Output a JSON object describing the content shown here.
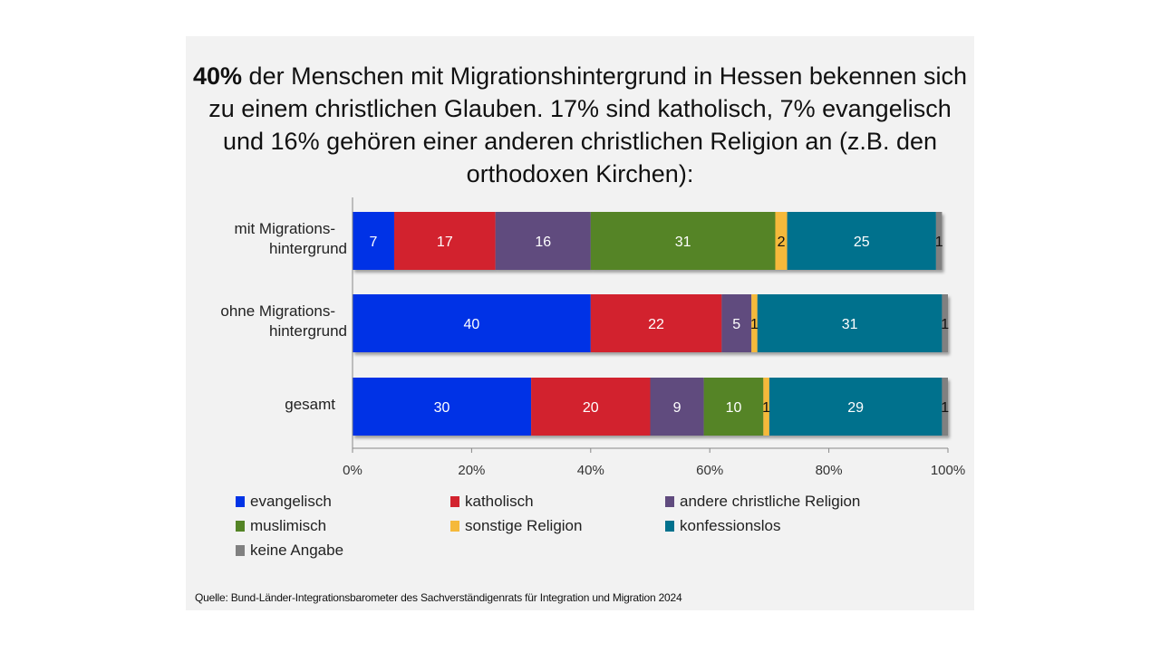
{
  "title": {
    "bold_prefix": "40%",
    "text": " der Menschen mit Migrationshintergrund in Hessen bekennen sich zu einem christlichen Glauben. 17% sind katholisch, 7% evangelisch und 16% gehören einer anderen christlichen Religion an (z.B. den orthodoxen Kirchen):"
  },
  "source": "Quelle: Bund-Länder-Integrationsbarometer des Sachverständigenrats für Integration und Migration 2024",
  "chart_data": {
    "type": "bar",
    "orientation": "horizontal",
    "stacked": "percent",
    "title": "40% der Menschen mit Migrationshintergrund in Hessen bekennen sich zu einem christlichen Glauben. 17% sind katholisch, 7% evangelisch und 16% gehören einer anderen christlichen Religion an (z.B. den orthodoxen Kirchen):",
    "categories": [
      [
        "mit Migrations-",
        "hintergrund"
      ],
      [
        "ohne Migrations-",
        "hintergrund"
      ],
      [
        "gesamt"
      ]
    ],
    "series": [
      {
        "name": "evangelisch",
        "color": "#0033e6",
        "label_color": "#ffffff",
        "values": [
          7,
          40,
          30
        ]
      },
      {
        "name": "katholisch",
        "color": "#d2232e",
        "label_color": "#ffffff",
        "values": [
          17,
          22,
          20
        ]
      },
      {
        "name": "andere christliche Religion",
        "color": "#604b7e",
        "label_color": "#ffffff",
        "values": [
          16,
          5,
          9
        ]
      },
      {
        "name": "muslimisch",
        "color": "#548426",
        "label_color": "#ffffff",
        "values": [
          31,
          0,
          10
        ]
      },
      {
        "name": "sonstige Religion",
        "color": "#f5b93a",
        "label_color": "#111111",
        "values": [
          2,
          1,
          1
        ]
      },
      {
        "name": "konfessionslos",
        "color": "#00718d",
        "label_color": "#ffffff",
        "values": [
          25,
          31,
          29
        ]
      },
      {
        "name": "keine Angabe",
        "color": "#808080",
        "label_color": "#111111",
        "values": [
          1,
          1,
          1
        ]
      }
    ],
    "xticks": [
      "0%",
      "20%",
      "40%",
      "60%",
      "80%",
      "100%"
    ],
    "xlim": [
      0,
      100
    ],
    "xlabel": "",
    "ylabel": "",
    "grid": false,
    "legend_position": "bottom"
  }
}
